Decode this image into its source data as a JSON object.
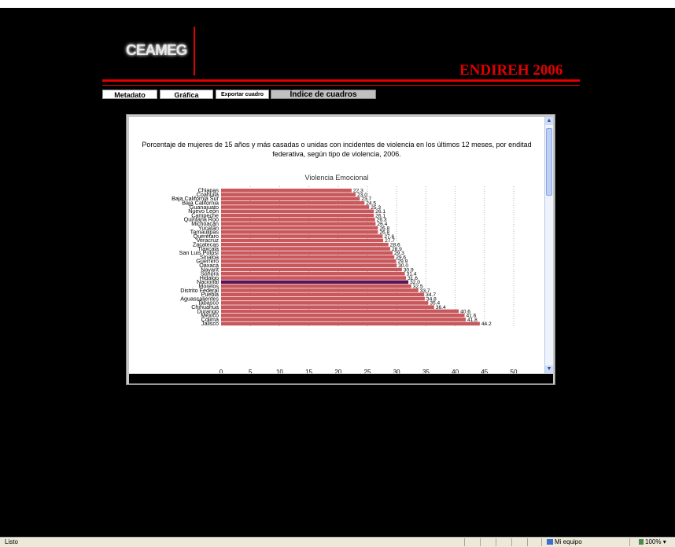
{
  "header": {
    "logo_text": "CEAMEG",
    "brand": "ENDIREH 2006"
  },
  "nav": {
    "metadato": "Metadato",
    "grafica": "Gráfica",
    "exportar": "Exportar cuadro",
    "indice": "Índice de cuadros"
  },
  "chart": {
    "title": "Porcentaje de mujeres de 15 años y más casadas o unidas con incidentes de violencia en los últimos 12 meses, por enditad federativa, según tipo de violencia, 2006.",
    "subtitle": "Violencia Emocional"
  },
  "chart_data": {
    "type": "bar",
    "orientation": "horizontal",
    "title": "Porcentaje de mujeres de 15 años y más casadas o unidas con incidentes de violencia en los últimos 12 meses, por enditad federativa, según tipo de violencia, 2006.",
    "subtitle": "Violencia Emocional",
    "categories": [
      "Chiapas",
      "Coahuila",
      "Baja California Sur",
      "Baja California",
      "Guanajuato",
      "Nuevo León",
      "Campeche",
      "Quintana Roo",
      "Michoacán",
      "Yucatán",
      "Tamaulipas",
      "Querétaro",
      "Veracruz",
      "Zacatecas",
      "Tlaxcala",
      "San Luis Potosí",
      "Sinaloa",
      "Guerrero",
      "Oaxaca",
      "Nayarit",
      "Sonora",
      "Hidalgo",
      "Nacional",
      "Morelos",
      "Distrito Federal",
      "Puebla",
      "Aguascalientes",
      "Tabasco",
      "Chihuahua",
      "Durango",
      "México",
      "Colima",
      "Jalisco"
    ],
    "values": [
      22.3,
      23.0,
      23.7,
      24.5,
      25.3,
      26.1,
      26.1,
      26.3,
      26.4,
      26.8,
      26.8,
      27.6,
      27.7,
      28.6,
      28.9,
      29.3,
      29.6,
      29.9,
      30.0,
      30.9,
      31.4,
      31.6,
      32.0,
      32.5,
      33.7,
      34.7,
      34.8,
      35.4,
      36.4,
      40.6,
      41.6,
      41.8,
      44.2
    ],
    "value_labels": [
      "22.3",
      "23.0",
      "23.7",
      "24.5",
      "25.3",
      "26.1",
      "26.1",
      "26.3",
      "26.4",
      "26.8",
      "26.8",
      "27.6",
      "27.7",
      "28.6",
      "28.9",
      "29.3",
      "29.6",
      "29.9",
      "30.0",
      "30.9",
      "31.4",
      "31.6",
      "32.0",
      "32.5",
      "33.7",
      "34.7",
      "34.8",
      "35.4",
      "36.4",
      "40.6",
      "41.6",
      "41.8",
      "44.2"
    ],
    "highlight": "Nacional",
    "xlim": [
      0,
      50
    ],
    "xticks": [
      "0",
      "5",
      "10",
      "15",
      "20",
      "25",
      "30",
      "35",
      "40",
      "45",
      "50"
    ],
    "bar_color": "#c8585c",
    "highlight_color": "#5c1452",
    "grid": "vertical dashed"
  },
  "statusbar": {
    "left": "Listo",
    "zone": "Mi equipo",
    "zoom": "100%"
  }
}
